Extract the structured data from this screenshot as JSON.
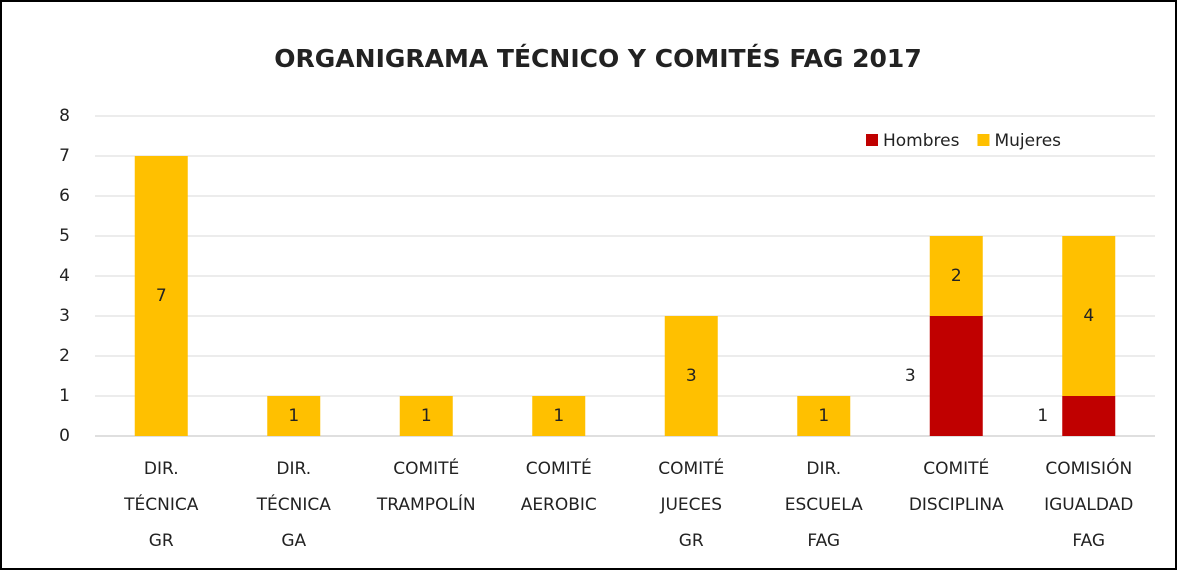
{
  "chart_data": {
    "type": "stacked_bar",
    "title": "ORGANIGRAMA TÉCNICO Y COMITÉS FAG 2017",
    "categories": [
      "DIR. TÉCNICA GR",
      "DIR. TÉCNICA GA",
      "COMITÉ TRAMPOLÍN",
      "COMITÉ AEROBIC",
      "COMITÉ JUECES GR",
      "DIR. ESCUELA FAG",
      "COMITÉ DISCIPLINA",
      "COMISIÓN IGUALDAD FAG"
    ],
    "series": [
      {
        "name": "Hombres",
        "color": "#c00000",
        "values": [
          0,
          0,
          0,
          0,
          0,
          0,
          3,
          1
        ]
      },
      {
        "name": "Mujeres",
        "color": "#ffc000",
        "values": [
          7,
          1,
          1,
          1,
          3,
          1,
          2,
          4
        ]
      }
    ],
    "ylim": [
      0,
      8
    ],
    "yticks": [
      0,
      1,
      2,
      3,
      4,
      5,
      6,
      7,
      8
    ],
    "grid": true,
    "legend": "top-right"
  }
}
